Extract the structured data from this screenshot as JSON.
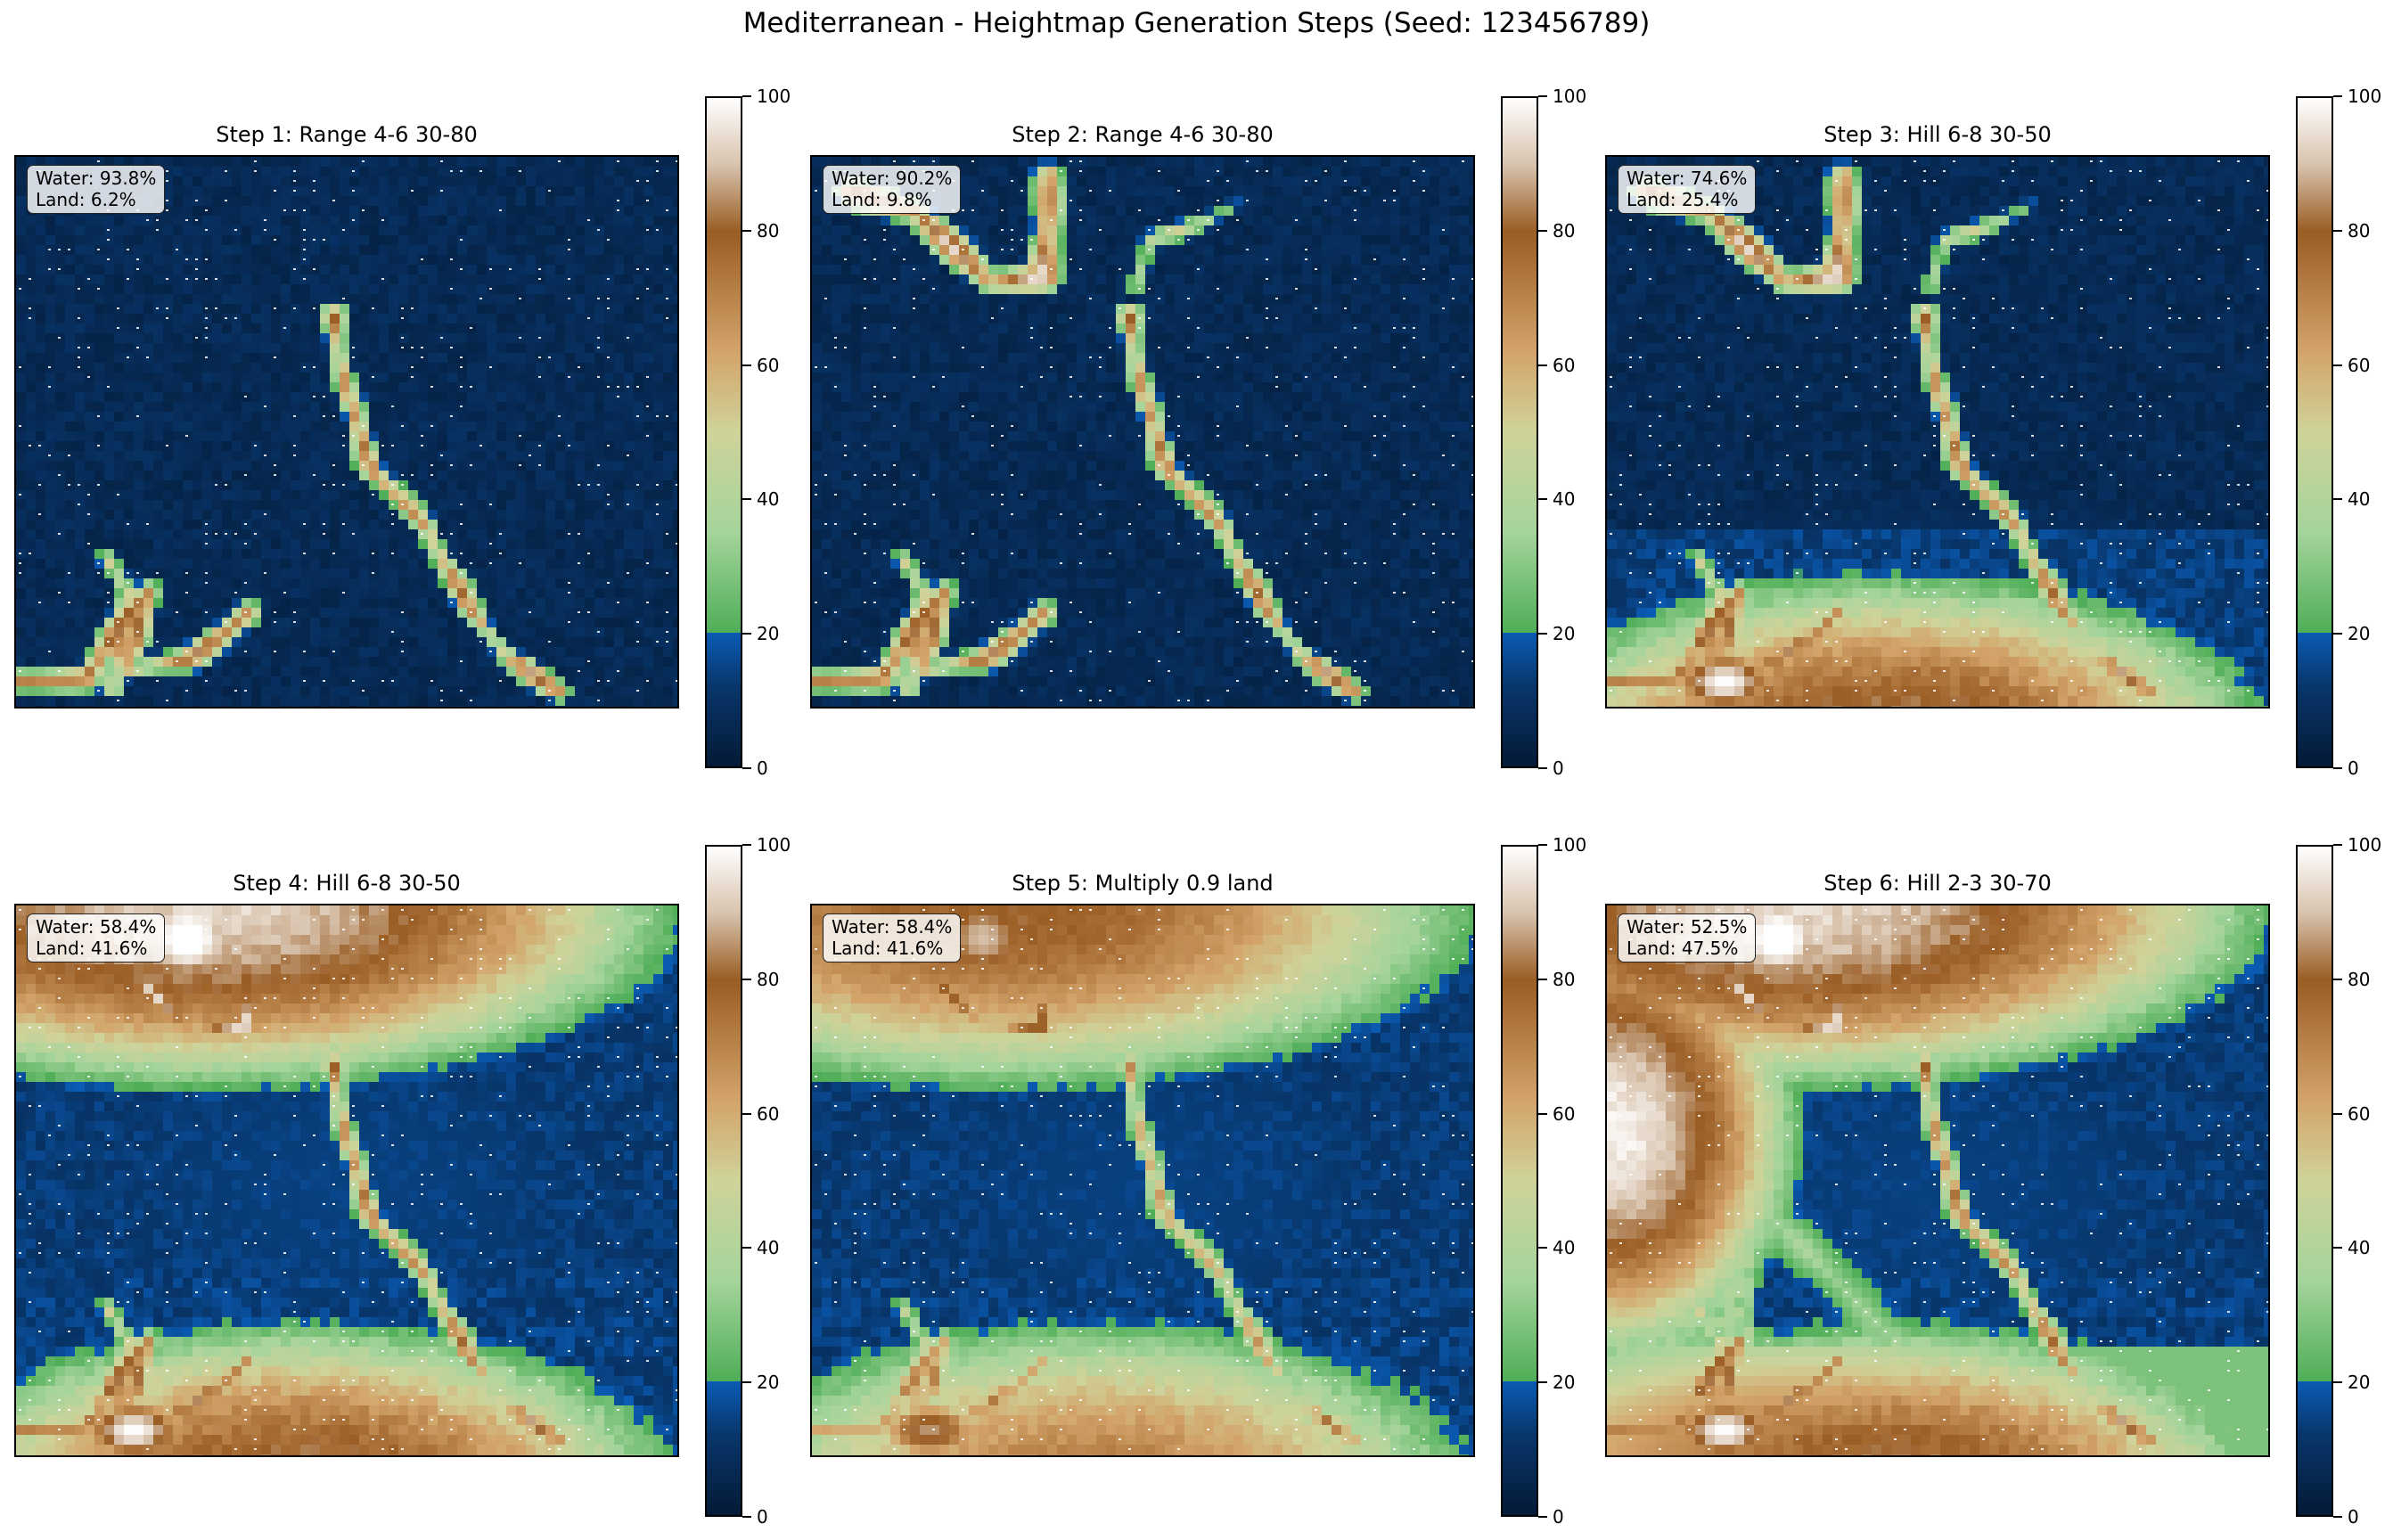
{
  "figure": {
    "title": "Mediterranean - Heightmap Generation Steps (Seed: 123456789)"
  },
  "chart_data": [
    {
      "type": "heatmap",
      "title": "Step 1: Range 4-6 30-80",
      "stats": {
        "water": "Water: 93.8%",
        "land": "Land: 6.2%"
      },
      "water_pct": 93.8,
      "land_pct": 6.2,
      "colorbar": {
        "range": [
          0,
          100
        ],
        "ticks": [
          0,
          20,
          40,
          60,
          80,
          100
        ],
        "sea_level": 20
      },
      "xlabel": "",
      "ylabel": ""
    },
    {
      "type": "heatmap",
      "title": "Step 2: Range 4-6 30-80",
      "stats": {
        "water": "Water: 90.2%",
        "land": "Land: 9.8%"
      },
      "water_pct": 90.2,
      "land_pct": 9.8,
      "colorbar": {
        "range": [
          0,
          100
        ],
        "ticks": [
          0,
          20,
          40,
          60,
          80,
          100
        ],
        "sea_level": 20
      },
      "xlabel": "",
      "ylabel": ""
    },
    {
      "type": "heatmap",
      "title": "Step 3: Hill 6-8 30-50",
      "stats": {
        "water": "Water: 74.6%",
        "land": "Land: 25.4%"
      },
      "water_pct": 74.6,
      "land_pct": 25.4,
      "colorbar": {
        "range": [
          0,
          100
        ],
        "ticks": [
          0,
          20,
          40,
          60,
          80,
          100
        ],
        "sea_level": 20
      },
      "xlabel": "",
      "ylabel": ""
    },
    {
      "type": "heatmap",
      "title": "Step 4: Hill 6-8 30-50",
      "stats": {
        "water": "Water: 58.4%",
        "land": "Land: 41.6%"
      },
      "water_pct": 58.4,
      "land_pct": 41.6,
      "colorbar": {
        "range": [
          0,
          100
        ],
        "ticks": [
          0,
          20,
          40,
          60,
          80,
          100
        ],
        "sea_level": 20
      },
      "xlabel": "",
      "ylabel": ""
    },
    {
      "type": "heatmap",
      "title": "Step 5: Multiply 0.9 land",
      "stats": {
        "water": "Water: 58.4%",
        "land": "Land: 41.6%"
      },
      "water_pct": 58.4,
      "land_pct": 41.6,
      "colorbar": {
        "range": [
          0,
          100
        ],
        "ticks": [
          0,
          20,
          40,
          60,
          80,
          100
        ],
        "sea_level": 20
      },
      "xlabel": "",
      "ylabel": ""
    },
    {
      "type": "heatmap",
      "title": "Step 6: Hill 2-3 30-70",
      "stats": {
        "water": "Water: 52.5%",
        "land": "Land: 47.5%"
      },
      "water_pct": 52.5,
      "land_pct": 47.5,
      "colorbar": {
        "range": [
          0,
          100
        ],
        "ticks": [
          0,
          20,
          40,
          60,
          80,
          100
        ],
        "sea_level": 20
      },
      "xlabel": "",
      "ylabel": ""
    }
  ],
  "colormap": {
    "name": "terrain-like",
    "stops": [
      {
        "v": 0,
        "color": "#041a36"
      },
      {
        "v": 12,
        "color": "#08366b"
      },
      {
        "v": 20,
        "color": "#0a5bb4"
      },
      {
        "v": 20.01,
        "color": "#4fae57"
      },
      {
        "v": 35,
        "color": "#a4d49b"
      },
      {
        "v": 50,
        "color": "#cfd39a"
      },
      {
        "v": 62,
        "color": "#d3a46a"
      },
      {
        "v": 80,
        "color": "#9a5d24"
      },
      {
        "v": 90,
        "color": "#d8c3ad"
      },
      {
        "v": 100,
        "color": "#ffffff"
      }
    ]
  }
}
